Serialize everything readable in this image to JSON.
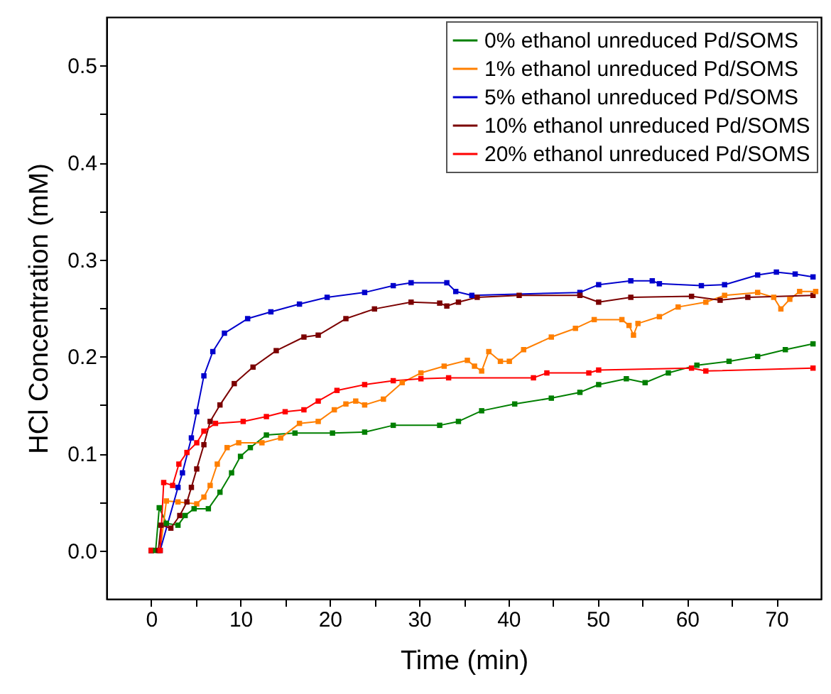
{
  "chart_data": {
    "type": "line",
    "xlabel": "Time (min)",
    "ylabel": "HCl Concentration (mM)",
    "xlim": [
      -5,
      75
    ],
    "ylim": [
      -0.05,
      0.55
    ],
    "xticks": [
      0,
      {
        "value": 5,
        "label": null
      },
      10,
      {
        "value": 15,
        "label": null
      },
      20,
      {
        "value": 25,
        "label": null
      },
      30,
      {
        "value": 35,
        "label": null
      },
      40,
      {
        "value": 45,
        "label": null
      },
      50,
      {
        "value": 55,
        "label": null
      },
      60,
      {
        "value": 65,
        "label": null
      },
      70
    ],
    "yticks": [
      {
        "value": 0,
        "label": "0.0"
      },
      {
        "value": 0.05,
        "label": null
      },
      {
        "value": 0.1,
        "label": "0.1"
      },
      {
        "value": 0.15,
        "label": null
      },
      {
        "value": 0.2,
        "label": "0.2"
      },
      {
        "value": 0.25,
        "label": null
      },
      {
        "value": 0.3,
        "label": "0.3"
      },
      {
        "value": 0.35,
        "label": null
      },
      {
        "value": 0.4,
        "label": "0.4"
      },
      {
        "value": 0.45,
        "label": null
      },
      {
        "value": 0.5,
        "label": "0.5"
      }
    ],
    "grid": false,
    "legend": "top right",
    "marker": "square",
    "line_style": "solid",
    "series": [
      {
        "name": "0% ethanol unreduced Pd/SOMS",
        "color": "#007f00",
        "x": [
          0,
          0.5,
          0.9,
          1.7,
          3.0,
          3.8,
          4.8,
          6.4,
          7.7,
          9.0,
          10.0,
          11.1,
          12.9,
          16.1,
          20.3,
          23.9,
          27.1,
          32.3,
          34.4,
          37,
          40.7,
          44.8,
          48,
          50.1,
          53.2,
          55.3,
          57.9,
          61.1,
          64.7,
          67.9,
          71,
          74.1
        ],
        "values": [
          0,
          0,
          0.044,
          0.028,
          0.026,
          0.036,
          0.043,
          0.043,
          0.06,
          0.08,
          0.097,
          0.106,
          0.119,
          0.121,
          0.121,
          0.122,
          0.129,
          0.129,
          0.133,
          0.144,
          0.151,
          0.157,
          0.163,
          0.171,
          0.177,
          0.173,
          0.183,
          0.191,
          0.195,
          0.2,
          0.207,
          0.213
        ]
      },
      {
        "name": "1% ethanol unreduced Pd/SOMS",
        "color": "#ff7f00",
        "x": [
          0,
          1,
          1.7,
          3.0,
          5.1,
          5.9,
          6.6,
          7.4,
          8.5,
          9.8,
          12.4,
          14.5,
          16.6,
          18.7,
          20.5,
          21.8,
          22.9,
          23.9,
          26,
          28.1,
          30.2,
          32.8,
          35.4,
          36.2,
          37,
          37.8,
          39.1,
          40.1,
          41.7,
          44.8,
          47.5,
          49.6,
          52.7,
          53.5,
          54,
          54.5,
          56.9,
          59,
          62.1,
          64.2,
          67.9,
          69.7,
          70.5,
          71.5,
          72.6,
          74.4
        ],
        "values": [
          0,
          0,
          0.051,
          0.05,
          0.048,
          0.055,
          0.067,
          0.089,
          0.106,
          0.111,
          0.111,
          0.116,
          0.131,
          0.133,
          0.145,
          0.151,
          0.154,
          0.15,
          0.156,
          0.173,
          0.183,
          0.19,
          0.196,
          0.19,
          0.185,
          0.205,
          0.195,
          0.195,
          0.207,
          0.22,
          0.229,
          0.238,
          0.238,
          0.232,
          0.222,
          0.234,
          0.241,
          0.251,
          0.256,
          0.263,
          0.266,
          0.261,
          0.249,
          0.259,
          0.267,
          0.267
        ]
      },
      {
        "name": "5% ethanol unreduced Pd/SOMS",
        "color": "#0000cc",
        "x": [
          0,
          1,
          3.0,
          3.5,
          4.5,
          5.1,
          5.9,
          6.9,
          8.2,
          10.8,
          13.4,
          16.6,
          19.7,
          23.9,
          27.1,
          29.1,
          33.1,
          34.1,
          35.9,
          48,
          50.1,
          53.7,
          56.1,
          56.9,
          61.6,
          64.2,
          67.9,
          70,
          72.1,
          74.1
        ],
        "values": [
          0,
          0,
          0.065,
          0.08,
          0.116,
          0.143,
          0.18,
          0.205,
          0.224,
          0.239,
          0.246,
          0.254,
          0.261,
          0.266,
          0.273,
          0.276,
          0.276,
          0.267,
          0.263,
          0.266,
          0.274,
          0.278,
          0.278,
          0.275,
          0.273,
          0.274,
          0.284,
          0.287,
          0.285,
          0.282
        ]
      },
      {
        "name": "10% ethanol unreduced Pd/SOMS",
        "color": "#7b0000",
        "x": [
          0,
          0.8,
          1.1,
          2.2,
          3.2,
          4.0,
          4.5,
          5.1,
          5.9,
          6.6,
          7.7,
          9.3,
          11.4,
          14,
          17.1,
          18.7,
          21.8,
          25,
          29.1,
          32.3,
          33.1,
          34.4,
          36.5,
          41.2,
          48,
          50.1,
          53.7,
          60.5,
          63.7,
          66.8,
          74.1
        ],
        "values": [
          0,
          0,
          0.026,
          0.023,
          0.036,
          0.05,
          0.065,
          0.084,
          0.109,
          0.133,
          0.15,
          0.172,
          0.189,
          0.206,
          0.22,
          0.222,
          0.239,
          0.249,
          0.256,
          0.255,
          0.252,
          0.256,
          0.261,
          0.263,
          0.263,
          0.256,
          0.261,
          0.262,
          0.258,
          0.261,
          0.263
        ]
      },
      {
        "name": "20% ethanol unreduced Pd/SOMS",
        "color": "#ff0000",
        "x": [
          0,
          1,
          1.4,
          2.4,
          3.1,
          4.0,
          5.1,
          5.9,
          7.2,
          10.3,
          12.9,
          15,
          17.1,
          18.7,
          20.8,
          23.9,
          27.1,
          30.2,
          33.3,
          42.8,
          44.3,
          49,
          50.1,
          60.5,
          62.1,
          74.1
        ],
        "values": [
          0,
          0,
          0.07,
          0.067,
          0.089,
          0.101,
          0.111,
          0.123,
          0.131,
          0.133,
          0.138,
          0.143,
          0.145,
          0.154,
          0.165,
          0.171,
          0.175,
          0.177,
          0.178,
          0.178,
          0.183,
          0.183,
          0.186,
          0.188,
          0.185,
          0.188
        ]
      }
    ]
  }
}
